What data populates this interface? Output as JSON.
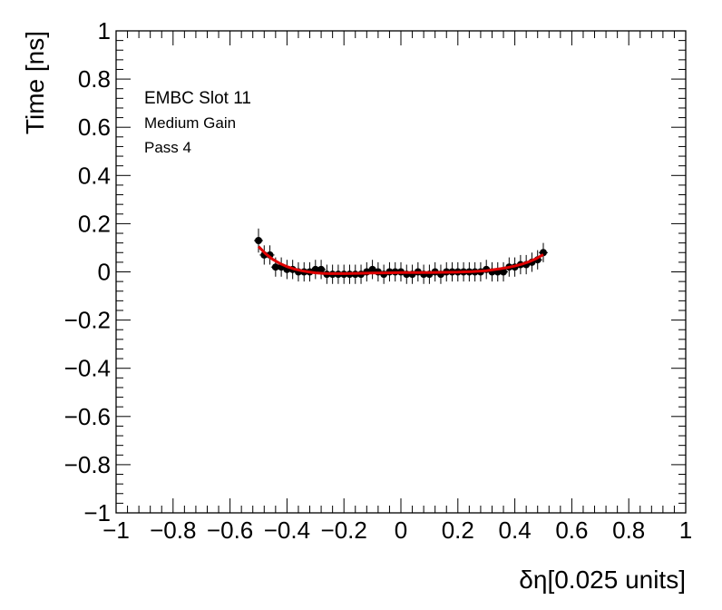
{
  "chart_data": {
    "type": "scatter",
    "xlabel": "δη[0.025 units]",
    "ylabel": "Time [ns]",
    "xlim": [
      -1,
      1
    ],
    "ylim": [
      -1,
      1
    ],
    "x_ticks": [
      "−1",
      "−0.8",
      "−0.6",
      "−0.4",
      "−0.2",
      "0",
      "0.2",
      "0.4",
      "0.6",
      "0.8",
      "1"
    ],
    "y_ticks": [
      "−1",
      "−0.8",
      "−0.6",
      "−0.4",
      "−0.2",
      "0",
      "0.2",
      "0.4",
      "0.6",
      "0.8",
      "1"
    ],
    "annotations": [
      "EMBC Slot 11",
      "Medium Gain",
      "Pass 4"
    ],
    "grid": false,
    "marker_color": "#000000",
    "fit_color": "#e00000",
    "points": {
      "x": [
        -0.5,
        -0.48,
        -0.46,
        -0.44,
        -0.42,
        -0.4,
        -0.38,
        -0.36,
        -0.34,
        -0.32,
        -0.3,
        -0.28,
        -0.26,
        -0.24,
        -0.22,
        -0.2,
        -0.18,
        -0.16,
        -0.14,
        -0.12,
        -0.1,
        -0.08,
        -0.06,
        -0.04,
        -0.02,
        0.0,
        0.02,
        0.04,
        0.06,
        0.08,
        0.1,
        0.12,
        0.14,
        0.16,
        0.18,
        0.2,
        0.22,
        0.24,
        0.26,
        0.28,
        0.3,
        0.32,
        0.34,
        0.36,
        0.38,
        0.4,
        0.42,
        0.44,
        0.46,
        0.48,
        0.5
      ],
      "y": [
        0.13,
        0.07,
        0.07,
        0.02,
        0.02,
        0.01,
        0.01,
        0.0,
        0.0,
        0.0,
        0.01,
        0.01,
        -0.01,
        -0.01,
        -0.01,
        -0.01,
        -0.01,
        -0.01,
        -0.01,
        0.0,
        0.01,
        0.0,
        -0.01,
        0.0,
        0.0,
        0.0,
        -0.01,
        -0.01,
        0.0,
        -0.01,
        -0.01,
        0.0,
        -0.01,
        0.0,
        0.0,
        0.0,
        0.0,
        0.0,
        0.0,
        0.0,
        0.01,
        0.0,
        0.0,
        0.0,
        0.02,
        0.02,
        0.03,
        0.03,
        0.04,
        0.05,
        0.08
      ],
      "yerr": [
        0.05,
        0.04,
        0.04,
        0.04,
        0.04,
        0.04,
        0.04,
        0.04,
        0.04,
        0.04,
        0.04,
        0.04,
        0.04,
        0.04,
        0.04,
        0.04,
        0.04,
        0.04,
        0.04,
        0.04,
        0.04,
        0.04,
        0.04,
        0.04,
        0.04,
        0.04,
        0.04,
        0.04,
        0.04,
        0.04,
        0.04,
        0.04,
        0.04,
        0.04,
        0.04,
        0.04,
        0.04,
        0.04,
        0.04,
        0.04,
        0.04,
        0.04,
        0.04,
        0.04,
        0.04,
        0.04,
        0.04,
        0.04,
        0.04,
        0.04,
        0.04
      ]
    },
    "fit": {
      "x": [
        -0.5,
        -0.475,
        -0.45,
        -0.425,
        -0.4,
        -0.375,
        -0.35,
        -0.325,
        -0.3,
        -0.275,
        -0.25,
        -0.2,
        -0.15,
        -0.1,
        -0.05,
        0.0,
        0.05,
        0.1,
        0.15,
        0.2,
        0.25,
        0.275,
        0.3,
        0.325,
        0.35,
        0.375,
        0.4,
        0.425,
        0.45,
        0.475,
        0.5
      ],
      "y": [
        0.105,
        0.075,
        0.052,
        0.035,
        0.022,
        0.012,
        0.005,
        0.0,
        -0.004,
        -0.006,
        -0.007,
        -0.007,
        -0.006,
        -0.005,
        -0.004,
        -0.003,
        -0.003,
        -0.003,
        -0.002,
        -0.001,
        0.001,
        0.003,
        0.005,
        0.009,
        0.013,
        0.018,
        0.024,
        0.032,
        0.042,
        0.055,
        0.072
      ]
    }
  }
}
